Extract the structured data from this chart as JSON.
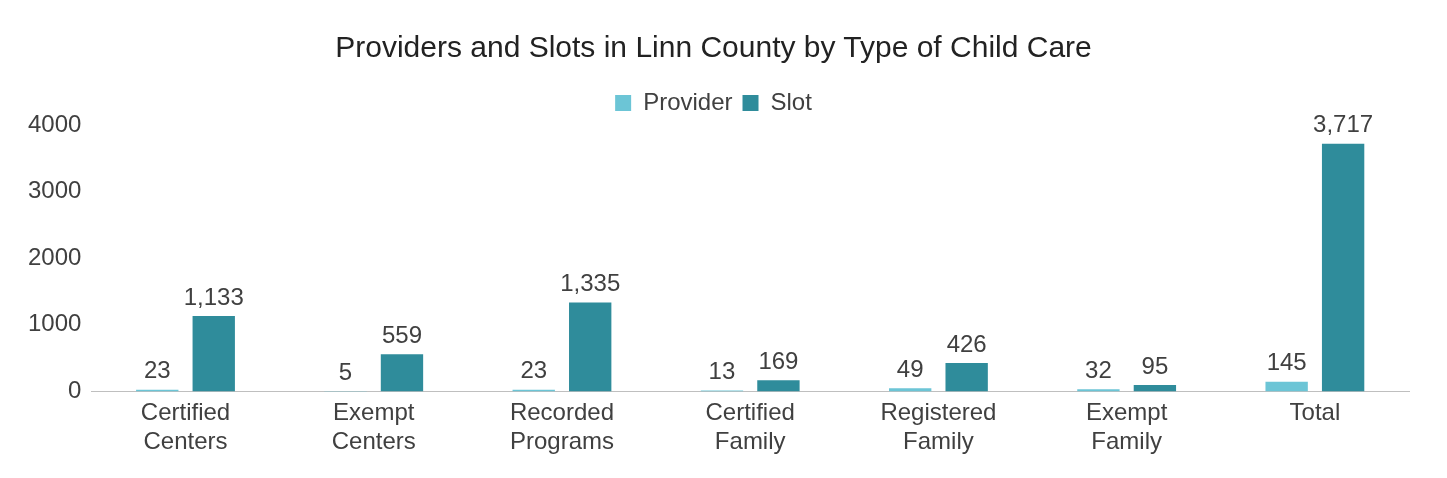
{
  "chart_data": {
    "type": "bar",
    "title": "Providers and Slots in Linn County by Type of Child Care",
    "categories": [
      "Certified Centers",
      "Exempt Centers",
      "Recorded Programs",
      "Certified Family",
      "Registered Family",
      "Exempt Family",
      "Total"
    ],
    "series": [
      {
        "name": "Provider",
        "color": "#6cc5d6",
        "values": [
          23,
          5,
          23,
          13,
          49,
          32,
          145
        ],
        "value_labels": [
          "23",
          "5",
          "23",
          "13",
          "49",
          "32",
          "145"
        ]
      },
      {
        "name": "Slot",
        "color": "#2f8c9b",
        "values": [
          1133,
          559,
          1335,
          169,
          426,
          95,
          3717
        ],
        "value_labels": [
          "1,133",
          "559",
          "1,335",
          "169",
          "426",
          "95",
          "3,717"
        ]
      }
    ],
    "ylim": [
      0,
      4000
    ],
    "yticks": [
      0,
      1000,
      2000,
      3000,
      4000
    ],
    "grid": false,
    "legend": "top"
  }
}
